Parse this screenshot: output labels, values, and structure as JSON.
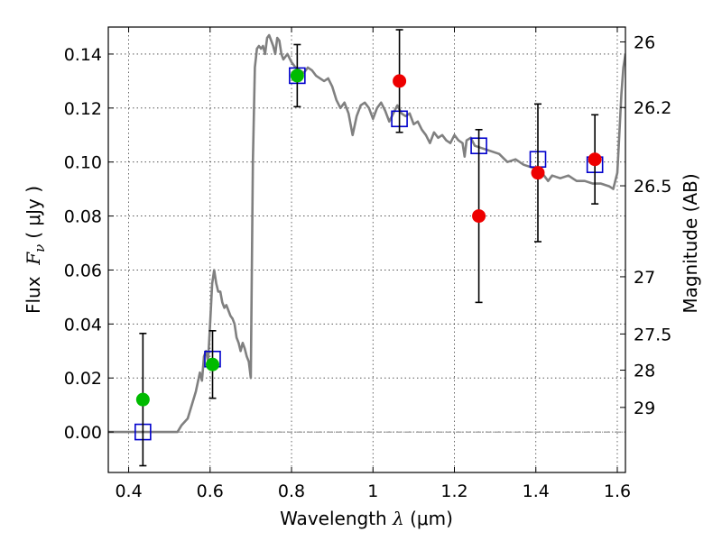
{
  "chart_data": {
    "type": "scatter",
    "title": "",
    "xlabel": {
      "prefix": "Wavelength ",
      "symbol": "λ",
      "unit": " (μm)"
    },
    "ylabel": {
      "prefix": "Flux  ",
      "symbol": "F",
      "subscript": "ν",
      "unit": "( μJy )"
    },
    "y2label": "Magnitude (AB)",
    "xlim": [
      0.35,
      1.62
    ],
    "ylim": [
      -0.015,
      0.15
    ],
    "grid": true,
    "x_ticks": [
      0.4,
      0.6,
      0.8,
      1.0,
      1.2,
      1.4,
      1.6
    ],
    "x_tick_labels": [
      "0.4",
      "0.6",
      "0.8",
      "1",
      "1.2",
      "1.4",
      "1.6"
    ],
    "y_ticks": [
      0.0,
      0.02,
      0.04,
      0.06,
      0.08,
      0.1,
      0.12,
      0.14
    ],
    "y_tick_labels": [
      "0.00",
      "0.02",
      "0.04",
      "0.06",
      "0.08",
      "0.10",
      "0.12",
      "0.14"
    ],
    "y2_ticks": [
      {
        "label": "26",
        "flux": 0.1445
      },
      {
        "label": "26.2",
        "flux": 0.1202
      },
      {
        "label": "26.5",
        "flux": 0.0912
      },
      {
        "label": "27",
        "flux": 0.0575
      },
      {
        "label": "27.5",
        "flux": 0.0363
      },
      {
        "label": "28",
        "flux": 0.0229
      },
      {
        "label": "29",
        "flux": 0.0091
      }
    ],
    "zero_line": 0.0,
    "series": [
      {
        "name": "model SED",
        "kind": "line",
        "color": "#808080",
        "points": [
          [
            0.35,
            0.0
          ],
          [
            0.52,
            0.0
          ],
          [
            0.53,
            0.0025
          ],
          [
            0.545,
            0.005
          ],
          [
            0.555,
            0.01
          ],
          [
            0.565,
            0.015
          ],
          [
            0.575,
            0.022
          ],
          [
            0.58,
            0.019
          ],
          [
            0.585,
            0.028
          ],
          [
            0.59,
            0.03
          ],
          [
            0.595,
            0.026
          ],
          [
            0.6,
            0.04
          ],
          [
            0.605,
            0.055
          ],
          [
            0.61,
            0.06
          ],
          [
            0.615,
            0.055
          ],
          [
            0.62,
            0.052
          ],
          [
            0.625,
            0.052
          ],
          [
            0.63,
            0.048
          ],
          [
            0.635,
            0.046
          ],
          [
            0.64,
            0.047
          ],
          [
            0.645,
            0.045
          ],
          [
            0.65,
            0.043
          ],
          [
            0.655,
            0.042
          ],
          [
            0.66,
            0.04
          ],
          [
            0.665,
            0.035
          ],
          [
            0.67,
            0.033
          ],
          [
            0.675,
            0.03
          ],
          [
            0.68,
            0.033
          ],
          [
            0.685,
            0.031
          ],
          [
            0.69,
            0.028
          ],
          [
            0.695,
            0.026
          ],
          [
            0.7,
            0.02
          ],
          [
            0.705,
            0.1
          ],
          [
            0.71,
            0.135
          ],
          [
            0.715,
            0.142
          ],
          [
            0.72,
            0.143
          ],
          [
            0.725,
            0.142
          ],
          [
            0.73,
            0.143
          ],
          [
            0.735,
            0.14
          ],
          [
            0.74,
            0.146
          ],
          [
            0.745,
            0.147
          ],
          [
            0.75,
            0.145
          ],
          [
            0.755,
            0.143
          ],
          [
            0.76,
            0.14
          ],
          [
            0.765,
            0.146
          ],
          [
            0.77,
            0.145
          ],
          [
            0.775,
            0.14
          ],
          [
            0.78,
            0.138
          ],
          [
            0.79,
            0.14
          ],
          [
            0.8,
            0.137
          ],
          [
            0.81,
            0.135
          ],
          [
            0.82,
            0.134
          ],
          [
            0.83,
            0.133
          ],
          [
            0.84,
            0.135
          ],
          [
            0.85,
            0.134
          ],
          [
            0.86,
            0.132
          ],
          [
            0.87,
            0.131
          ],
          [
            0.88,
            0.13
          ],
          [
            0.89,
            0.131
          ],
          [
            0.9,
            0.128
          ],
          [
            0.91,
            0.123
          ],
          [
            0.92,
            0.12
          ],
          [
            0.93,
            0.122
          ],
          [
            0.94,
            0.118
          ],
          [
            0.95,
            0.11
          ],
          [
            0.96,
            0.117
          ],
          [
            0.97,
            0.121
          ],
          [
            0.98,
            0.122
          ],
          [
            0.99,
            0.12
          ],
          [
            1.0,
            0.116
          ],
          [
            1.01,
            0.12
          ],
          [
            1.02,
            0.122
          ],
          [
            1.03,
            0.119
          ],
          [
            1.04,
            0.115
          ],
          [
            1.05,
            0.118
          ],
          [
            1.06,
            0.121
          ],
          [
            1.07,
            0.118
          ],
          [
            1.08,
            0.117
          ],
          [
            1.09,
            0.118
          ],
          [
            1.1,
            0.114
          ],
          [
            1.11,
            0.115
          ],
          [
            1.12,
            0.112
          ],
          [
            1.13,
            0.11
          ],
          [
            1.14,
            0.107
          ],
          [
            1.15,
            0.111
          ],
          [
            1.16,
            0.109
          ],
          [
            1.17,
            0.11
          ],
          [
            1.18,
            0.108
          ],
          [
            1.19,
            0.107
          ],
          [
            1.2,
            0.11
          ],
          [
            1.21,
            0.108
          ],
          [
            1.22,
            0.107
          ],
          [
            1.225,
            0.102
          ],
          [
            1.23,
            0.108
          ],
          [
            1.24,
            0.109
          ],
          [
            1.25,
            0.106
          ],
          [
            1.27,
            0.105
          ],
          [
            1.29,
            0.104
          ],
          [
            1.31,
            0.103
          ],
          [
            1.33,
            0.1
          ],
          [
            1.35,
            0.101
          ],
          [
            1.37,
            0.099
          ],
          [
            1.39,
            0.098
          ],
          [
            1.41,
            0.097
          ],
          [
            1.43,
            0.093
          ],
          [
            1.44,
            0.095
          ],
          [
            1.46,
            0.094
          ],
          [
            1.48,
            0.095
          ],
          [
            1.5,
            0.093
          ],
          [
            1.52,
            0.093
          ],
          [
            1.54,
            0.092
          ],
          [
            1.56,
            0.092
          ],
          [
            1.58,
            0.091
          ],
          [
            1.59,
            0.09
          ],
          [
            1.6,
            0.096
          ],
          [
            1.605,
            0.11
          ],
          [
            1.61,
            0.125
          ],
          [
            1.615,
            0.135
          ],
          [
            1.62,
            0.14
          ]
        ]
      },
      {
        "name": "model band flux",
        "kind": "markers",
        "marker": "open-square",
        "color": "#0000cc",
        "x": [
          0.435,
          0.606,
          0.814,
          1.065,
          1.26,
          1.405,
          1.545
        ],
        "y": [
          0.0,
          0.027,
          0.132,
          0.116,
          0.106,
          0.101,
          0.099
        ]
      },
      {
        "name": "observed flux",
        "kind": "errorbar",
        "color": "#000000",
        "x": [
          0.435,
          0.606,
          0.814,
          1.065,
          1.26,
          1.405,
          1.545
        ],
        "y": [
          0.012,
          0.025,
          0.132,
          0.13,
          0.08,
          0.096,
          0.101
        ],
        "err": [
          0.0245,
          0.0125,
          0.0115,
          0.019,
          0.032,
          0.0255,
          0.0165
        ],
        "marker_colors": [
          "#00bb00",
          "#00bb00",
          "#00bb00",
          "#ee0000",
          "#ee0000",
          "#ee0000",
          "#ee0000"
        ]
      }
    ]
  }
}
